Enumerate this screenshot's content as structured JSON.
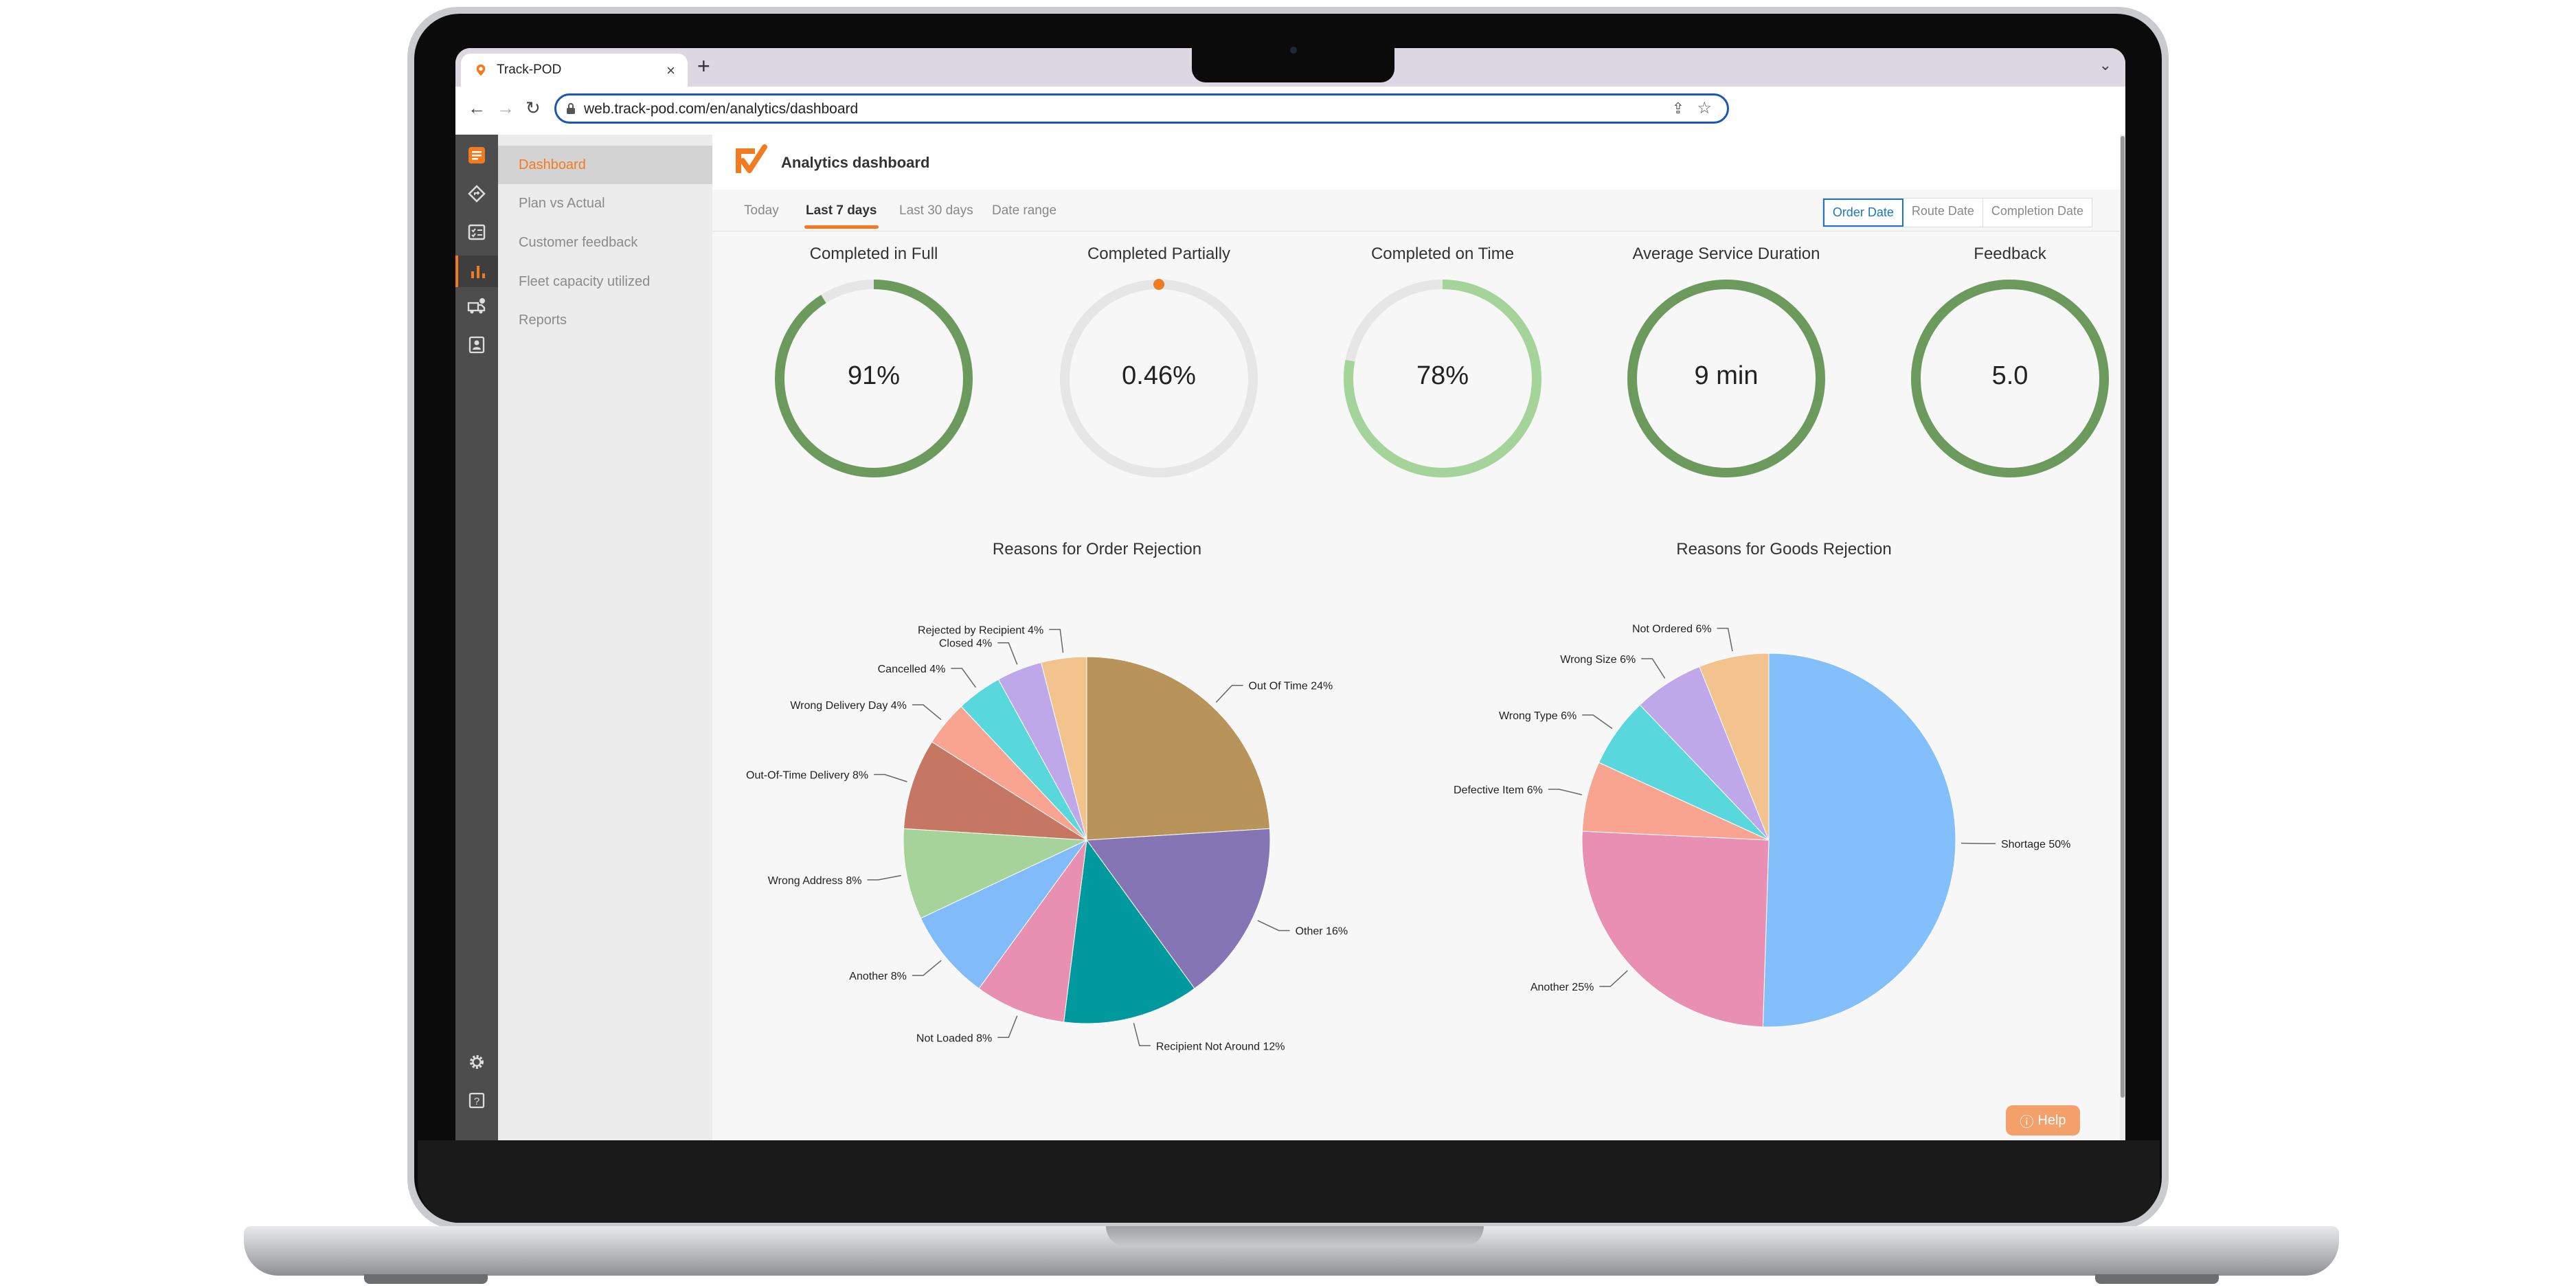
{
  "browser": {
    "tab_title": "Track-POD",
    "tab_close": "×",
    "new_tab": "+",
    "url": "web.track-pod.com/en/analytics/dashboard"
  },
  "sidebar": {
    "items": [
      {
        "label": "Dashboard",
        "active": true
      },
      {
        "label": "Plan vs Actual",
        "active": false
      },
      {
        "label": "Customer feedback",
        "active": false
      },
      {
        "label": "Fleet capacity utilized",
        "active": false
      },
      {
        "label": "Reports",
        "active": false
      }
    ]
  },
  "header": {
    "title": "Analytics dashboard"
  },
  "filters": {
    "periods": [
      "Today",
      "Last 7 days",
      "Last 30 days",
      "Date range"
    ],
    "active_period": "Last 7 days",
    "date_types": [
      "Order Date",
      "Route Date",
      "Completion Date"
    ],
    "active_date_type": "Order Date"
  },
  "kpis": [
    {
      "title": "Completed in Full",
      "value": "91%",
      "fill": 0.91,
      "color": "#6b9a5c"
    },
    {
      "title": "Completed Partially",
      "value": "0.46%",
      "fill": 0.0046,
      "color": "#f27b20"
    },
    {
      "title": "Completed on Time",
      "value": "78%",
      "fill": 0.78,
      "color": "#a5d49a"
    },
    {
      "title": "Average Service Duration",
      "value": "9 min",
      "fill": 1,
      "color": "#6b9a5c"
    },
    {
      "title": "Feedback",
      "value": "5.0",
      "fill": 1,
      "color": "#6b9a5c"
    }
  ],
  "chart_data": [
    {
      "type": "pie",
      "title": "Reasons for Order Rejection",
      "slices": [
        {
          "label": "Out Of Time 24%",
          "value": 24,
          "color": "#b8935a"
        },
        {
          "label": "Other 16%",
          "value": 16,
          "color": "#8575b4"
        },
        {
          "label": "Recipient Not Around 12%",
          "value": 12,
          "color": "#009a9e"
        },
        {
          "label": "Not Loaded 8%",
          "value": 8,
          "color": "#e790b2"
        },
        {
          "label": "Another 8%",
          "value": 8,
          "color": "#82bbf9"
        },
        {
          "label": "Wrong Address 8%",
          "value": 8,
          "color": "#a5d399"
        },
        {
          "label": "Out-Of-Time Delivery 8%",
          "value": 8,
          "color": "#c67763"
        },
        {
          "label": "Wrong Delivery Day 4%",
          "value": 4,
          "color": "#f9a491"
        },
        {
          "label": "Cancelled 4%",
          "value": 4,
          "color": "#58d7dd"
        },
        {
          "label": "Closed 4%",
          "value": 4,
          "color": "#bea8e9"
        },
        {
          "label": "Rejected by Recipient 4%",
          "value": 4,
          "color": "#f2c38c"
        }
      ]
    },
    {
      "type": "pie",
      "title": "Reasons for Goods Rejection",
      "slices": [
        {
          "label": "Shortage 50%",
          "value": 50,
          "color": "#82bffb"
        },
        {
          "label": "Another 25%",
          "value": 25,
          "color": "#e98fb3"
        },
        {
          "label": "Defective Item 6%",
          "value": 6,
          "color": "#f9a491"
        },
        {
          "label": "Wrong Type 6%",
          "value": 6,
          "color": "#58d7dd"
        },
        {
          "label": "Wrong Size 6%",
          "value": 6,
          "color": "#bea8e9"
        },
        {
          "label": "Not Ordered 6%",
          "value": 6,
          "color": "#f2c38c"
        }
      ]
    }
  ],
  "help": {
    "label": "Help"
  }
}
